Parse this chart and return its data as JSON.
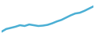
{
  "x": [
    2003,
    2004,
    2005,
    2006,
    2007,
    2008,
    2009,
    2010,
    2011,
    2012,
    2013,
    2014,
    2015,
    2016,
    2017,
    2018,
    2019,
    2020,
    2021,
    2022,
    2023
  ],
  "y": [
    13.5,
    14.2,
    14.5,
    14.8,
    15.2,
    15.0,
    15.4,
    15.2,
    15.0,
    15.1,
    15.3,
    15.7,
    16.2,
    16.6,
    17.2,
    17.8,
    18.3,
    18.5,
    19.0,
    19.6,
    20.2
  ],
  "line_color": "#4bafd4",
  "line_width": 1.8,
  "background_color": "#ffffff",
  "ylim": [
    12.5,
    21.5
  ],
  "xlim": [
    2003,
    2023
  ]
}
